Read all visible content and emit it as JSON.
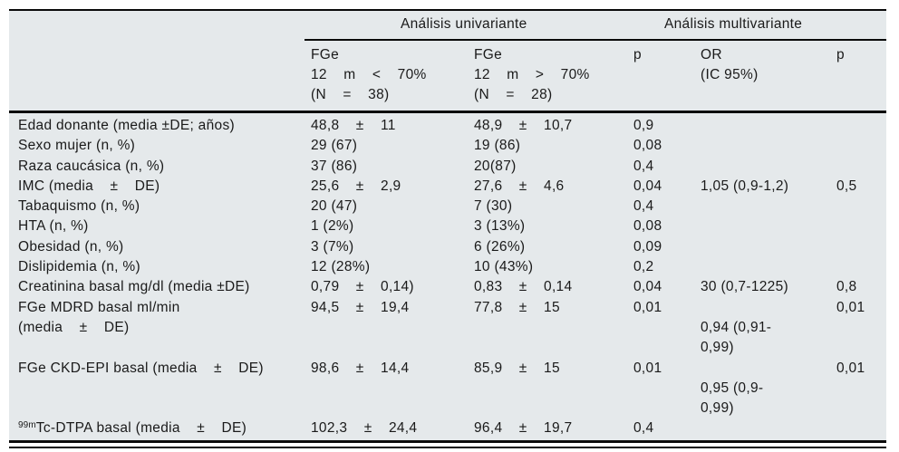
{
  "colors": {
    "panel_background": "#e5e9eb",
    "rule": "#0a0a0a",
    "text": "#1a1a1a"
  },
  "figure": {
    "group_headers": {
      "univariante": "Análisis univariante",
      "multivariante": "Análisis multivariante"
    },
    "columns": {
      "fge_lt70": "FGe\n12    m    <    70%\n(N    =    38)",
      "fge_gt70": "FGe\n12    m    >    70%\n(N    =    28)",
      "p_uni": "p",
      "or_ci": "OR\n(IC 95%)",
      "p_multi": "p"
    },
    "rows": [
      {
        "label": "Edad donante (media ±DE; años)",
        "lt70": "48,8    ±    11",
        "gt70": "48,9    ±    10,7",
        "p1": "0,9",
        "or": "",
        "p2": ""
      },
      {
        "label": "Sexo mujer (n, %)",
        "lt70": "29 (67)",
        "gt70": "19 (86)",
        "p1": "0,08",
        "or": "",
        "p2": ""
      },
      {
        "label": "Raza caucásica (n, %)",
        "lt70": "37 (86)",
        "gt70": "20(87)",
        "p1": "0,4",
        "or": "",
        "p2": ""
      },
      {
        "label": "IMC (media    ±    DE)",
        "lt70": "25,6    ±    2,9",
        "gt70": "27,6    ±    4,6",
        "p1": "0,04",
        "or": "1,05 (0,9-1,2)",
        "p2": "0,5"
      },
      {
        "label": "Tabaquismo (n, %)",
        "lt70": "20 (47)",
        "gt70": "7 (30)",
        "p1": "0,4",
        "or": "",
        "p2": ""
      },
      {
        "label": "HTA (n, %)",
        "lt70": "1 (2%)",
        "gt70": "3 (13%)",
        "p1": "0,08",
        "or": "",
        "p2": ""
      },
      {
        "label": "Obesidad (n, %)",
        "lt70": "3 (7%)",
        "gt70": "6 (26%)",
        "p1": "0,09",
        "or": "",
        "p2": ""
      },
      {
        "label": "Dislipidemia (n, %)",
        "lt70": "12 (28%)",
        "gt70": "10 (43%)",
        "p1": "0,2",
        "or": "",
        "p2": ""
      },
      {
        "label": "Creatinina basal mg/dl (media ±DE)",
        "lt70": "0,79    ±    0,14)",
        "gt70": "0,83    ±    0,14",
        "p1": "0,04",
        "or": "30 (0,7-1225)",
        "p2": "0,8"
      },
      {
        "label": "FGe MDRD basal ml/min\n(media    ±    DE)",
        "lt70": "94,5    ±    19,4",
        "gt70": "77,8    ±    15",
        "p1": "0,01",
        "or": "\n0,94 (0,91-\n0,99)",
        "p2": "0,01"
      },
      {
        "label": "FGe CKD-EPI basal (media    ±    DE)",
        "lt70": "98,6    ±    14,4",
        "gt70": "85,9    ±    15",
        "p1": "0,01",
        "or": "\n0,95 (0,9-\n0,99)",
        "p2": "0,01"
      },
      {
        "label_sup": "99m",
        "label": "Tc-DTPA basal (media    ±    DE)",
        "lt70": "102,3    ±    24,4",
        "gt70": "96,4    ±    19,7",
        "p1": "0,4",
        "or": "",
        "p2": ""
      }
    ]
  }
}
